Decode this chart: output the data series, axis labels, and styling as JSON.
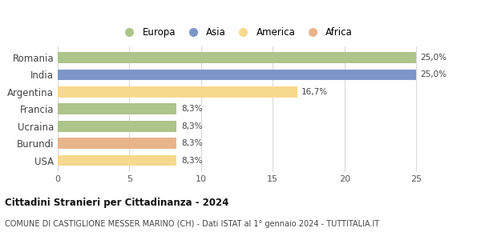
{
  "categories": [
    "Romania",
    "India",
    "Argentina",
    "Francia",
    "Ucraina",
    "Burundi",
    "USA"
  ],
  "values": [
    25.0,
    25.0,
    16.7,
    8.3,
    8.3,
    8.3,
    8.3
  ],
  "labels": [
    "25,0%",
    "25,0%",
    "16,7%",
    "8,3%",
    "8,3%",
    "8,3%",
    "8,3%"
  ],
  "colors": [
    "#adc48a",
    "#7b96c8",
    "#f7d98e",
    "#adc48a",
    "#adc48a",
    "#e8b48a",
    "#f7d98e"
  ],
  "legend_labels": [
    "Europa",
    "Asia",
    "America",
    "Africa"
  ],
  "legend_colors": [
    "#adc48a",
    "#7b96c8",
    "#f7d98e",
    "#e8b48a"
  ],
  "xlim": [
    0,
    26.5
  ],
  "xticks": [
    0,
    5,
    10,
    15,
    20,
    25
  ],
  "title": "Cittadini Stranieri per Cittadinanza - 2024",
  "subtitle": "COMUNE DI CASTIGLIONE MESSER MARINO (CH) - Dati ISTAT al 1° gennaio 2024 - TUTTITALIA.IT",
  "background_color": "#ffffff",
  "grid_color": "#d8d8d8"
}
